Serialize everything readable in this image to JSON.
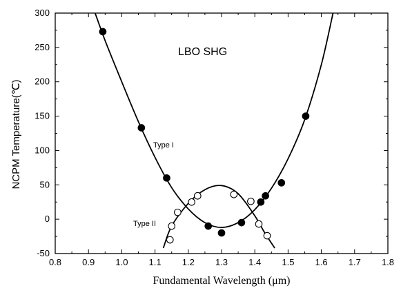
{
  "chart_data": {
    "type": "scatter",
    "title": "",
    "annotation": "LBO SHG",
    "xlabel": "Fundamental Wavelength (μm)",
    "ylabel": "NCPM Temperature(℃)",
    "xlim": [
      0.8,
      1.8
    ],
    "ylim": [
      -50,
      300
    ],
    "xticks": [
      "0.8",
      "0.9",
      "1.0",
      "1.1",
      "1.2",
      "1.3",
      "1.4",
      "1.5",
      "1.6",
      "1.7",
      "1.8"
    ],
    "yticks": [
      "-50",
      "0",
      "50",
      "100",
      "150",
      "200",
      "250",
      "300"
    ],
    "grid": false,
    "series": [
      {
        "name": "Type I",
        "marker": "filled-circle",
        "color": "#000000",
        "points": [
          {
            "x": 0.943,
            "y": 273
          },
          {
            "x": 1.059,
            "y": 133
          },
          {
            "x": 1.135,
            "y": 60
          },
          {
            "x": 1.26,
            "y": -10
          },
          {
            "x": 1.3,
            "y": -20
          },
          {
            "x": 1.36,
            "y": -5
          },
          {
            "x": 1.418,
            "y": 25
          },
          {
            "x": 1.432,
            "y": 34
          },
          {
            "x": 1.48,
            "y": 53
          },
          {
            "x": 1.553,
            "y": 150
          }
        ],
        "curve": [
          {
            "x": 0.92,
            "y": 300
          },
          {
            "x": 0.95,
            "y": 260
          },
          {
            "x": 1.0,
            "y": 200
          },
          {
            "x": 1.05,
            "y": 142
          },
          {
            "x": 1.1,
            "y": 90
          },
          {
            "x": 1.15,
            "y": 46
          },
          {
            "x": 1.2,
            "y": 15
          },
          {
            "x": 1.25,
            "y": -5
          },
          {
            "x": 1.3,
            "y": -12
          },
          {
            "x": 1.35,
            "y": -5
          },
          {
            "x": 1.4,
            "y": 14
          },
          {
            "x": 1.45,
            "y": 45
          },
          {
            "x": 1.5,
            "y": 88
          },
          {
            "x": 1.55,
            "y": 145
          },
          {
            "x": 1.6,
            "y": 225
          },
          {
            "x": 1.635,
            "y": 300
          }
        ]
      },
      {
        "name": "Type II",
        "marker": "open-circle",
        "color": "#000000",
        "points": [
          {
            "x": 1.145,
            "y": -30
          },
          {
            "x": 1.15,
            "y": -10
          },
          {
            "x": 1.168,
            "y": 10
          },
          {
            "x": 1.21,
            "y": 25
          },
          {
            "x": 1.228,
            "y": 34
          },
          {
            "x": 1.337,
            "y": 36
          },
          {
            "x": 1.388,
            "y": 26
          },
          {
            "x": 1.412,
            "y": -7
          },
          {
            "x": 1.437,
            "y": -24
          }
        ],
        "curve": [
          {
            "x": 1.125,
            "y": -42
          },
          {
            "x": 1.15,
            "y": -10
          },
          {
            "x": 1.2,
            "y": 23
          },
          {
            "x": 1.25,
            "y": 43
          },
          {
            "x": 1.3,
            "y": 49
          },
          {
            "x": 1.35,
            "y": 37
          },
          {
            "x": 1.4,
            "y": 5
          },
          {
            "x": 1.43,
            "y": -20
          },
          {
            "x": 1.46,
            "y": -42
          }
        ]
      }
    ]
  }
}
